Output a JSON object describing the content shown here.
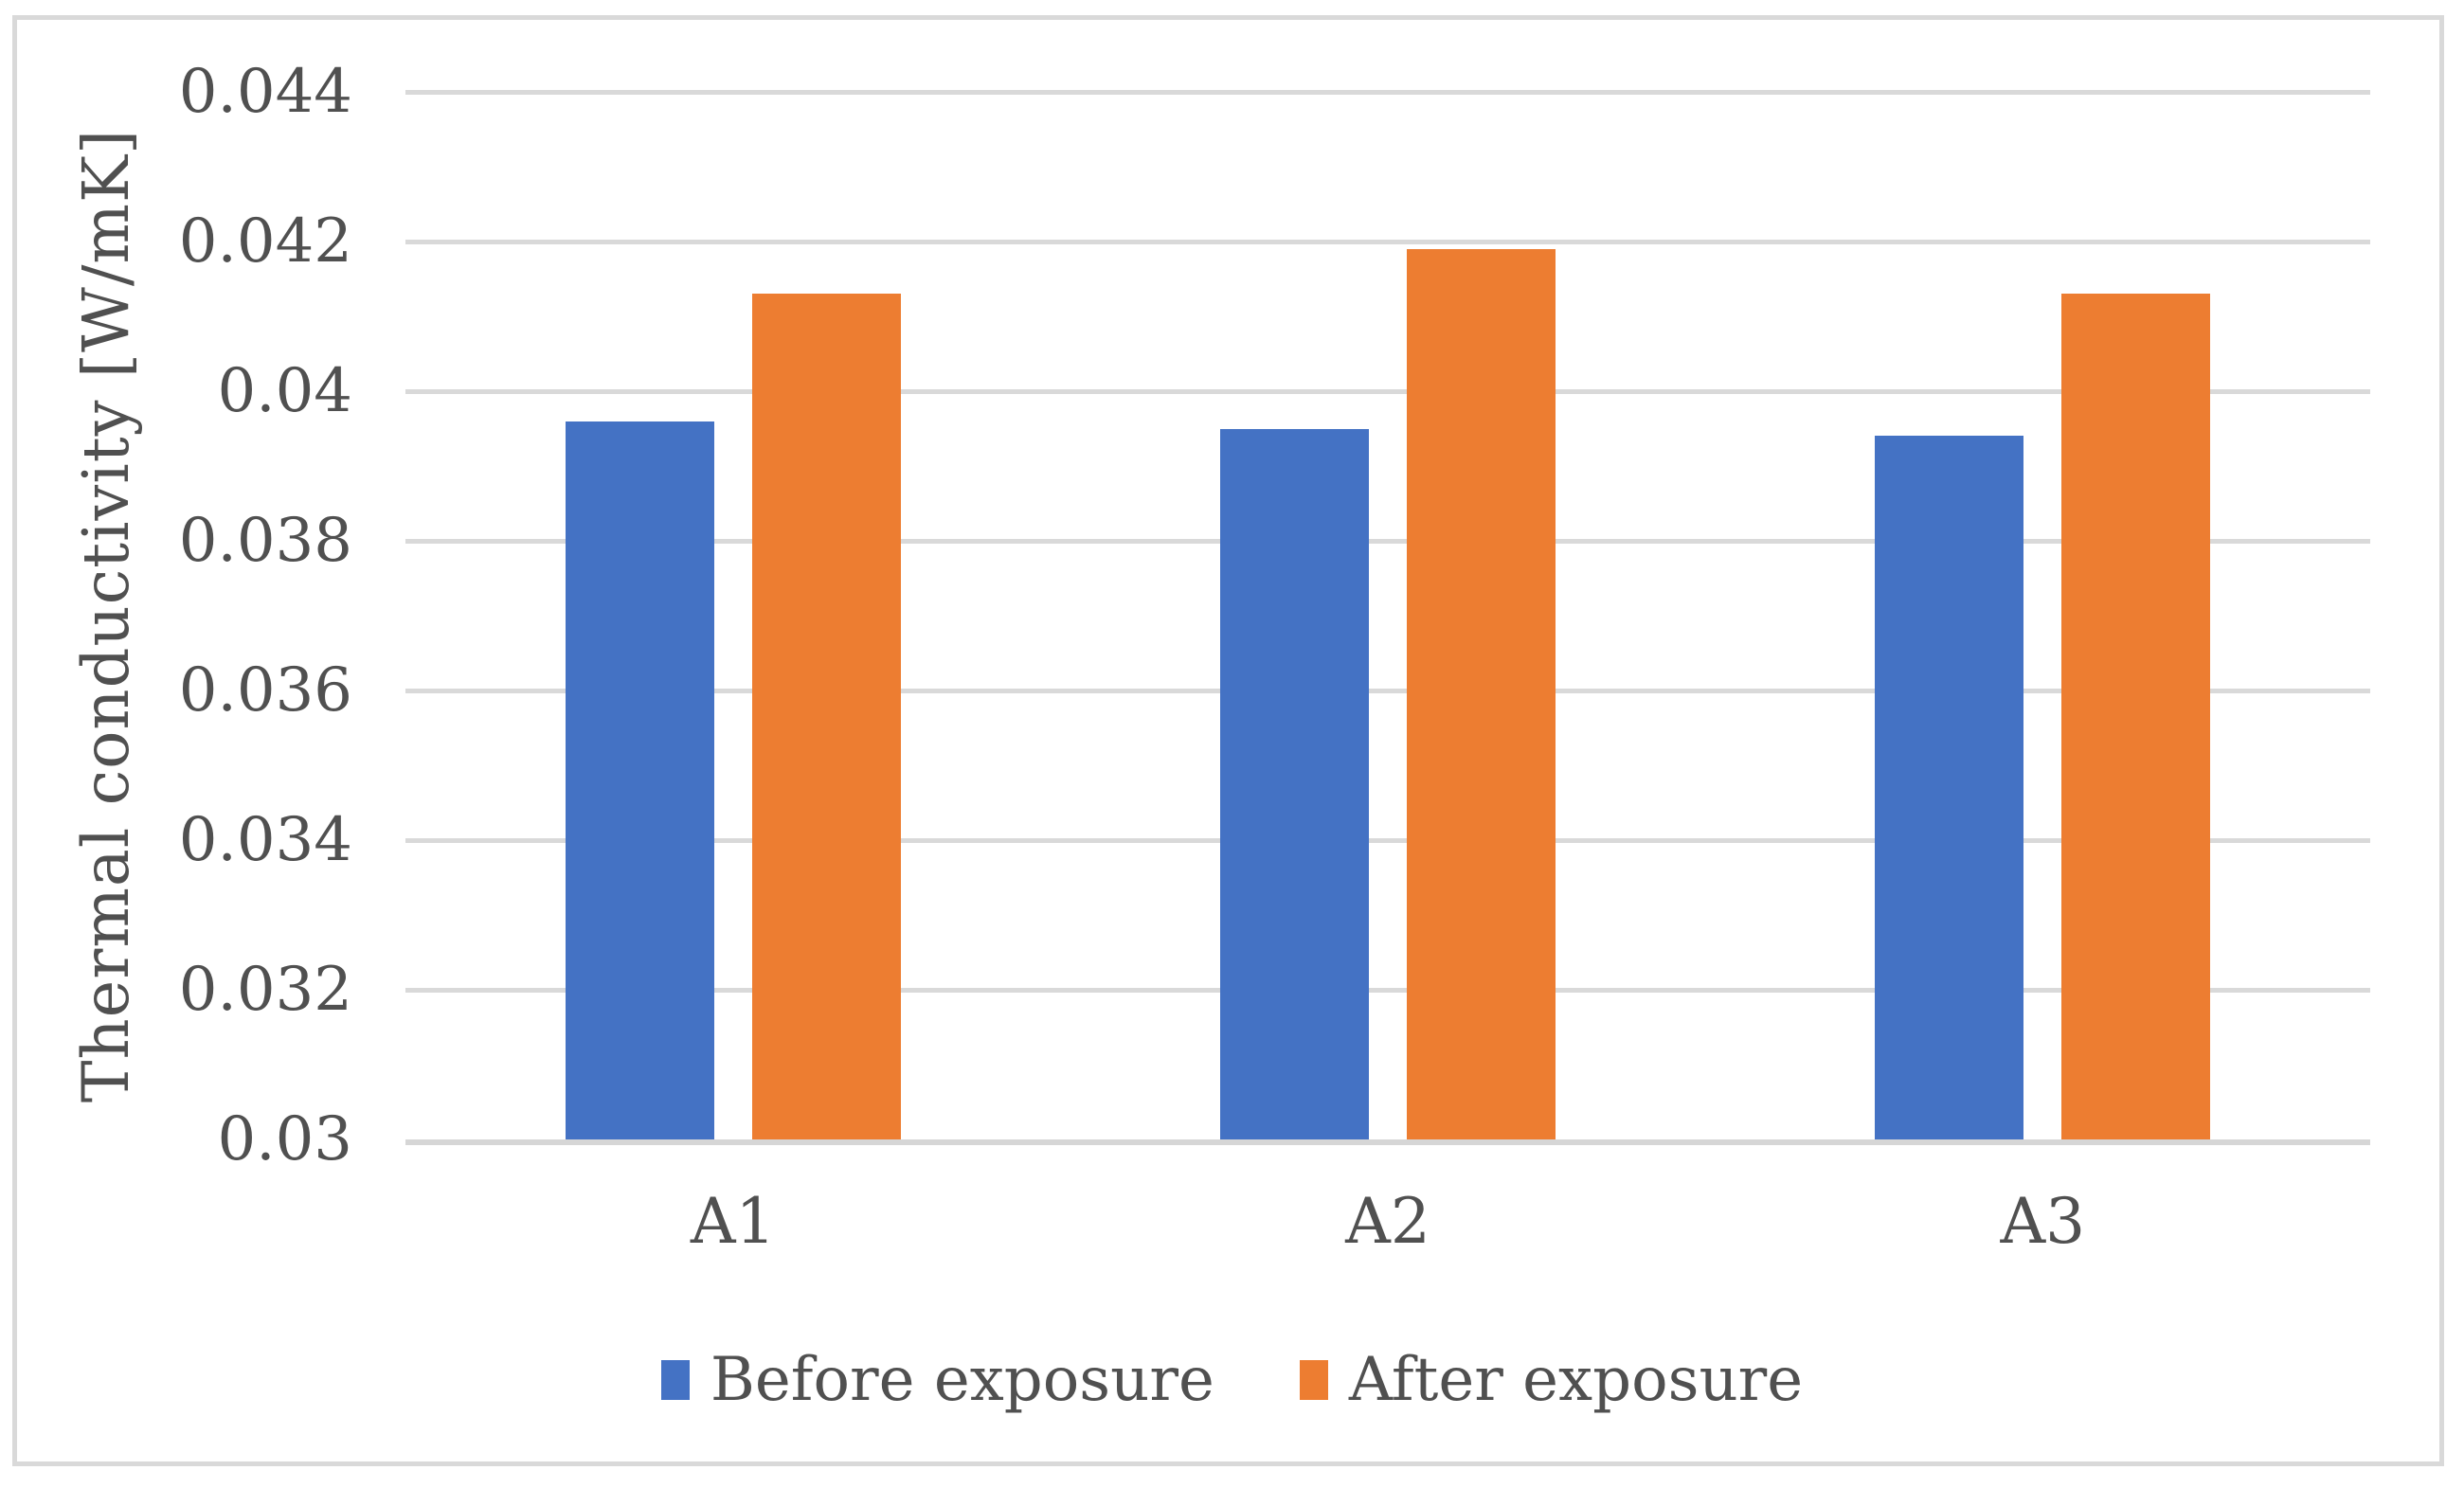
{
  "figure": {
    "background_color": "#ffffff",
    "border_color": "#d9d9d9",
    "gridline_color": "#d9d9d9",
    "axis_line_color": "#d6d6d6",
    "text_color": "#505050"
  },
  "chart_data": {
    "type": "bar",
    "title": "",
    "categories": [
      "A1",
      "A2",
      "A3"
    ],
    "series": [
      {
        "name": "Before exposure",
        "color": "#4472C4",
        "values": [
          0.0396,
          0.0395,
          0.0394
        ]
      },
      {
        "name": "After exposure",
        "color": "#ED7D31",
        "values": [
          0.0413,
          0.0419,
          0.0413
        ]
      }
    ],
    "xlabel": "",
    "ylabel": "Thermal conductivity [W/mK]",
    "ylim": [
      0.03,
      0.044
    ],
    "ytick_interval": 0.002,
    "ytick_labels": [
      "0.044",
      "0.042",
      "0.04",
      "0.038",
      "0.036",
      "0.034",
      "0.032",
      "0.03"
    ],
    "grid": true,
    "legend": {
      "position": "bottom",
      "entries": [
        "Before exposure",
        "After exposure"
      ]
    }
  }
}
